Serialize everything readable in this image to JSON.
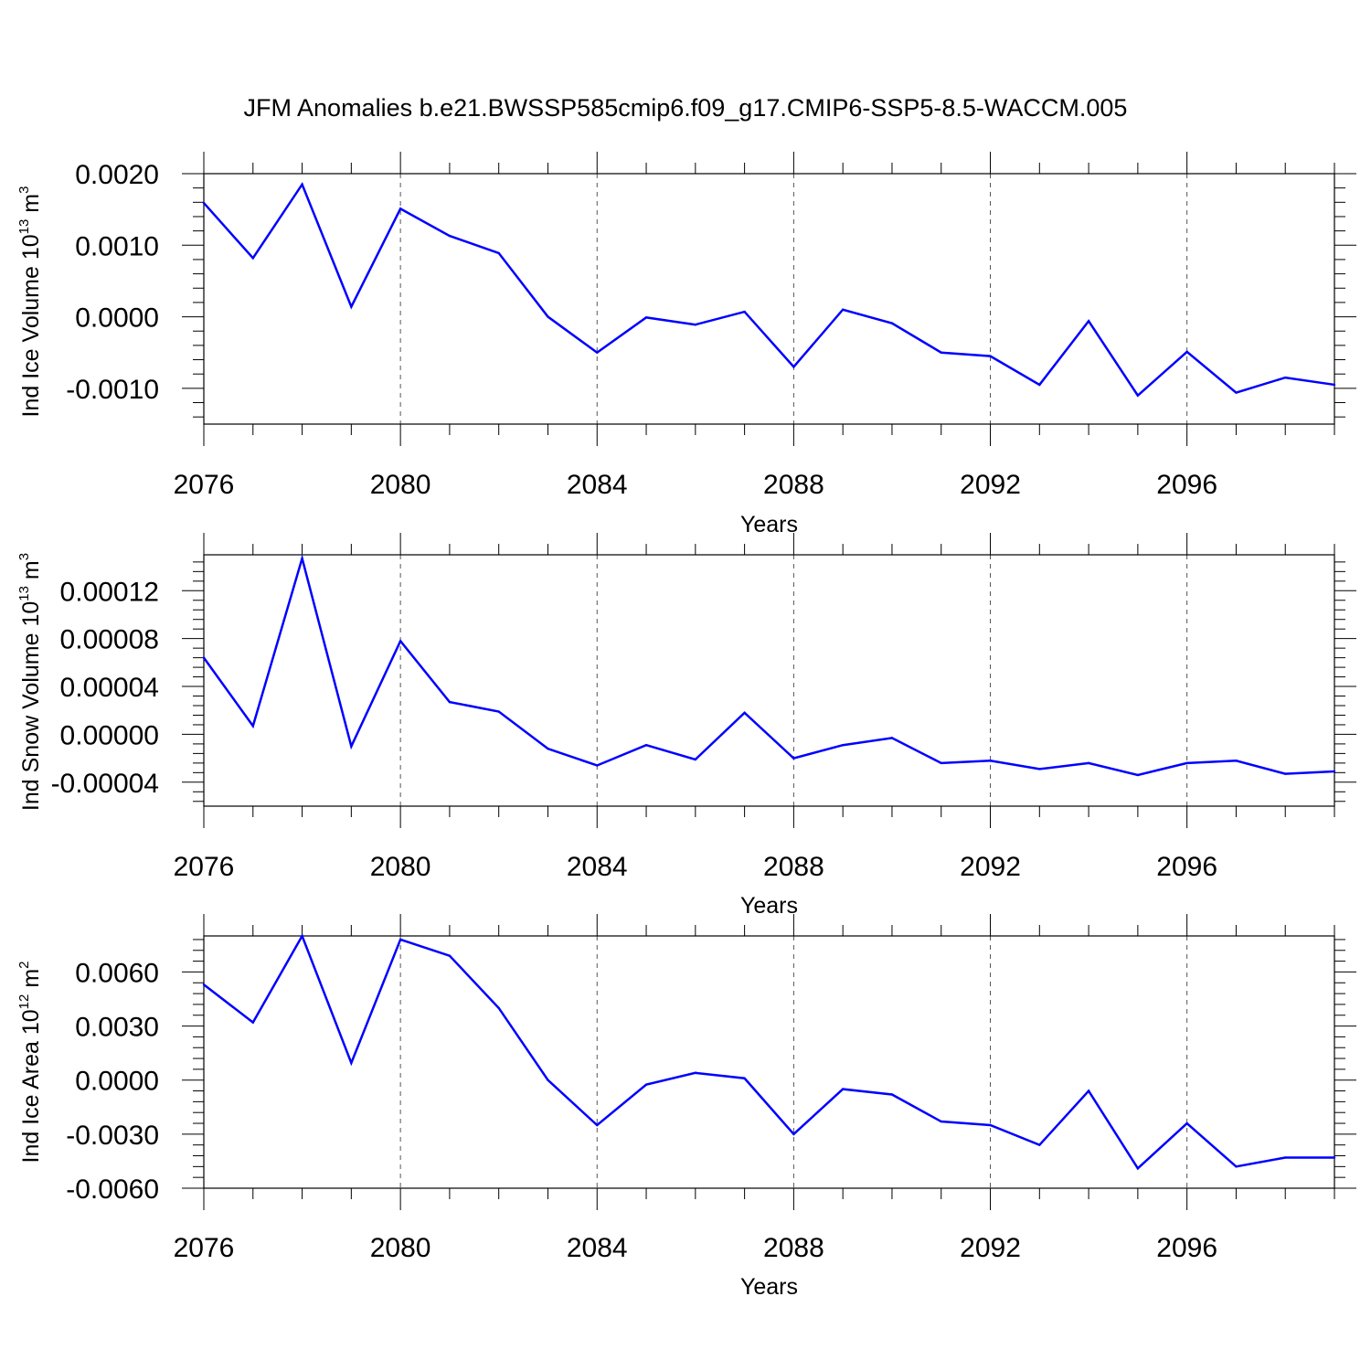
{
  "title": "JFM Anomalies b.e21.BWSSP585cmip6.f09_g17.CMIP6-SSP5-8.5-WACCM.005",
  "line_color": "#0000ff",
  "chart_data": [
    {
      "type": "line",
      "ylabel_main": "Ind Ice Volume 10",
      "ylabel_exp": "13",
      "ylabel_unit": " m",
      "ylabel_unit_exp": "3",
      "xlabel": "Years",
      "xlim": [
        2076,
        2099
      ],
      "ylim": [
        -0.0015,
        0.002
      ],
      "yticks": [
        -0.001,
        0.0,
        0.001,
        0.002
      ],
      "ytick_labels": [
        "-0.0010",
        "0.0000",
        "0.0010",
        "0.0020"
      ],
      "xticks": [
        2076,
        2080,
        2084,
        2088,
        2092,
        2096
      ],
      "xtick_labels": [
        "2076",
        "2080",
        "2084",
        "2088",
        "2092",
        "2096"
      ],
      "grid_x": [
        2080,
        2084,
        2088,
        2092,
        2096
      ],
      "x": [
        2076,
        2077,
        2078,
        2079,
        2080,
        2081,
        2082,
        2083,
        2084,
        2085,
        2086,
        2087,
        2088,
        2089,
        2090,
        2091,
        2092,
        2093,
        2094,
        2095,
        2096,
        2097,
        2098,
        2099
      ],
      "values": [
        0.00159,
        0.00082,
        0.00185,
        0.00014,
        0.00151,
        0.00113,
        0.00089,
        0.0,
        -0.0005,
        -1e-05,
        -0.00011,
        7e-05,
        -0.0007,
        0.0001,
        -9e-05,
        -0.0005,
        -0.00055,
        -0.00095,
        -6e-05,
        -0.0011,
        -0.00049,
        -0.00106,
        -0.00085,
        -0.00095
      ]
    },
    {
      "type": "line",
      "ylabel_main": "Ind Snow Volume 10",
      "ylabel_exp": "13",
      "ylabel_unit": " m",
      "ylabel_unit_exp": "3",
      "xlabel": "Years",
      "xlim": [
        2076,
        2099
      ],
      "ylim": [
        -6e-05,
        0.00015
      ],
      "yticks": [
        -4e-05,
        0.0,
        4e-05,
        8e-05,
        0.00012
      ],
      "ytick_labels": [
        "-0.00004",
        "0.00000",
        "0.00004",
        "0.00008",
        "0.00012"
      ],
      "xticks": [
        2076,
        2080,
        2084,
        2088,
        2092,
        2096
      ],
      "xtick_labels": [
        "2076",
        "2080",
        "2084",
        "2088",
        "2092",
        "2096"
      ],
      "grid_x": [
        2080,
        2084,
        2088,
        2092,
        2096
      ],
      "x": [
        2076,
        2077,
        2078,
        2079,
        2080,
        2081,
        2082,
        2083,
        2084,
        2085,
        2086,
        2087,
        2088,
        2089,
        2090,
        2091,
        2092,
        2093,
        2094,
        2095,
        2096,
        2097,
        2098,
        2099
      ],
      "values": [
        6.4e-05,
        7e-06,
        0.000147,
        -1e-05,
        7.8e-05,
        2.7e-05,
        1.9e-05,
        -1.2e-05,
        -2.6e-05,
        -9e-06,
        -2.1e-05,
        1.8e-05,
        -2e-05,
        -9e-06,
        -3e-06,
        -2.4e-05,
        -2.2e-05,
        -2.9e-05,
        -2.4e-05,
        -3.4e-05,
        -2.4e-05,
        -2.2e-05,
        -3.3e-05,
        -3.1e-05
      ]
    },
    {
      "type": "line",
      "ylabel_main": "Ind Ice Area 10",
      "ylabel_exp": "12",
      "ylabel_unit": " m",
      "ylabel_unit_exp": "2",
      "xlabel": "Years",
      "xlim": [
        2076,
        2099
      ],
      "ylim": [
        -0.006,
        0.008
      ],
      "yticks": [
        -0.006,
        -0.003,
        0.0,
        0.003,
        0.006
      ],
      "ytick_labels": [
        "-0.0060",
        "-0.0030",
        "0.0000",
        "0.0030",
        "0.0060"
      ],
      "xticks": [
        2076,
        2080,
        2084,
        2088,
        2092,
        2096
      ],
      "xtick_labels": [
        "2076",
        "2080",
        "2084",
        "2088",
        "2092",
        "2096"
      ],
      "grid_x": [
        2080,
        2084,
        2088,
        2092,
        2096
      ],
      "x": [
        2076,
        2077,
        2078,
        2079,
        2080,
        2081,
        2082,
        2083,
        2084,
        2085,
        2086,
        2087,
        2088,
        2089,
        2090,
        2091,
        2092,
        2093,
        2094,
        2095,
        2096,
        2097,
        2098,
        2099
      ],
      "values": [
        0.0053,
        0.0032,
        0.008,
        0.00095,
        0.0078,
        0.0069,
        0.004,
        0.0,
        -0.0025,
        -0.00025,
        0.0004,
        0.0001,
        -0.003,
        -0.0005,
        -0.0008,
        -0.0023,
        -0.0025,
        -0.0036,
        -0.0006,
        -0.0049,
        -0.0024,
        -0.0048,
        -0.0043,
        -0.0043
      ]
    }
  ]
}
